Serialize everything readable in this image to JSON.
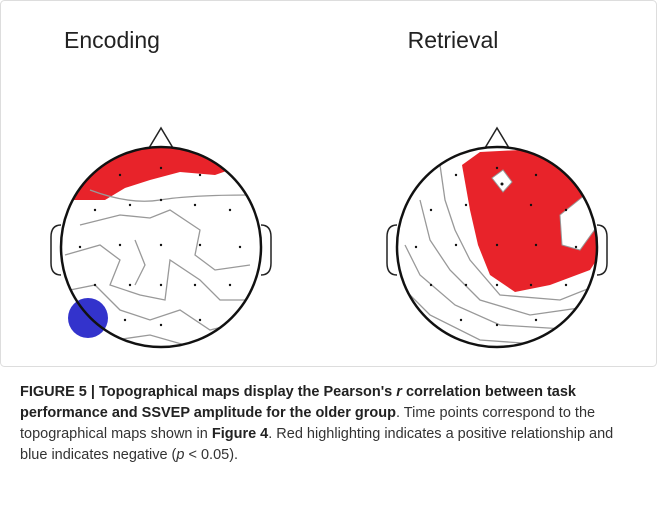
{
  "panels": [
    {
      "label": "Encoding"
    },
    {
      "label": "Retrieval"
    }
  ],
  "caption": {
    "parts": [
      {
        "text": "FIGURE 5 | Topographical maps display the Pearson's ",
        "style": "bold"
      },
      {
        "text": "r",
        "style": "bold-italic"
      },
      {
        "text": " correlation between task performance and SSVEP amplitude for the older group",
        "style": "bold"
      },
      {
        "text": ". Time points correspond to the topographical maps shown in ",
        "style": "normal"
      },
      {
        "text": "Figure 4",
        "style": "bold"
      },
      {
        "text": ". Red highlighting indicates a positive relationship and blue indicates negative (",
        "style": "normal"
      },
      {
        "text": "p",
        "style": "italic"
      },
      {
        "text": " < 0.05).",
        "style": "normal"
      }
    ]
  }
}
